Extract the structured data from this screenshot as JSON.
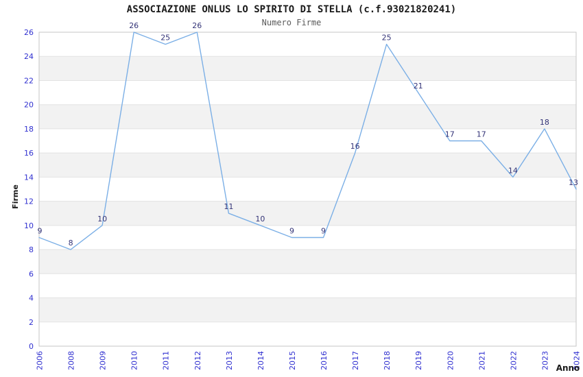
{
  "header": {
    "title": "ASSOCIAZIONE ONLUS LO SPIRITO DI STELLA (c.f.93021820241)",
    "subtitle": "Numero Firme"
  },
  "colors": {
    "line": "#7bafe6",
    "tick_label": "#3030d0",
    "point_label": "#333377",
    "band": "#f2f2f2",
    "grid": "#e3e3e3",
    "border": "#c6c6c6",
    "axis_title": "#1a1a1a",
    "background": "#ffffff"
  },
  "chart_data": {
    "type": "line",
    "title": "ASSOCIAZIONE ONLUS LO SPIRITO DI STELLA (c.f.93021820241)",
    "subtitle": "Numero Firme",
    "xlabel": "Anno",
    "ylabel": "Firme",
    "categories": [
      "2006",
      "2008",
      "2009",
      "2010",
      "2011",
      "2012",
      "2013",
      "2014",
      "2015",
      "2016",
      "2017",
      "2018",
      "2019",
      "2020",
      "2021",
      "2022",
      "2023",
      "2024"
    ],
    "values": [
      9,
      8,
      10,
      26,
      25,
      26,
      11,
      10,
      9,
      9,
      16,
      25,
      21,
      17,
      17,
      14,
      18,
      13
    ],
    "ylim": [
      0,
      26
    ],
    "ytick_step": 2,
    "grid": "horizontal-banded",
    "legend": "none",
    "point_labels_visible": true
  }
}
